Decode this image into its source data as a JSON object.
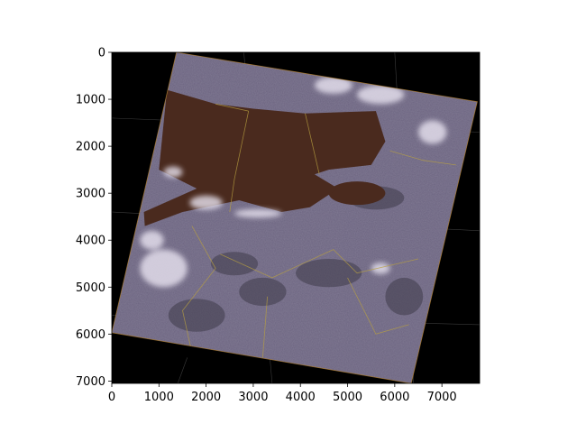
{
  "figure": {
    "background": "#ffffff",
    "plot_background": "#000000"
  },
  "chart_data": {
    "type": "heatmap",
    "title": "",
    "xlabel": "",
    "ylabel": "",
    "xlim": [
      0,
      7800
    ],
    "ylim": [
      7050,
      0
    ],
    "x_ticks": [
      0,
      1000,
      2000,
      3000,
      4000,
      5000,
      6000,
      7000
    ],
    "y_ticks": [
      0,
      1000,
      2000,
      3000,
      4000,
      5000,
      6000,
      7000
    ],
    "x_tick_labels": [
      "0",
      "1000",
      "2000",
      "3000",
      "4000",
      "5000",
      "6000",
      "7000"
    ],
    "y_tick_labels": [
      "0",
      "1000",
      "2000",
      "3000",
      "4000",
      "5000",
      "6000",
      "7000"
    ],
    "scene_corners": [
      [
        1370,
        0
      ],
      [
        7750,
        1050
      ],
      [
        6350,
        7050
      ],
      [
        0,
        5970
      ]
    ],
    "water_body_polygon": [
      [
        1170,
        800
      ],
      [
        2200,
        1100
      ],
      [
        3000,
        1200
      ],
      [
        4100,
        1300
      ],
      [
        5600,
        1250
      ],
      [
        5800,
        1900
      ],
      [
        5500,
        2400
      ],
      [
        4600,
        2500
      ],
      [
        4300,
        2600
      ],
      [
        4800,
        2900
      ],
      [
        4200,
        3300
      ],
      [
        3600,
        3400
      ],
      [
        2700,
        3150
      ],
      [
        1500,
        3400
      ],
      [
        700,
        3700
      ],
      [
        680,
        3400
      ],
      [
        1800,
        2900
      ],
      [
        1000,
        2500
      ],
      [
        1170,
        800
      ]
    ],
    "colors": {
      "land": "#6c6480",
      "water": "#4a2a1e",
      "clouds": "#e8e4f0",
      "borders": "#b8a040",
      "graticule": "#3a3a3a"
    }
  }
}
